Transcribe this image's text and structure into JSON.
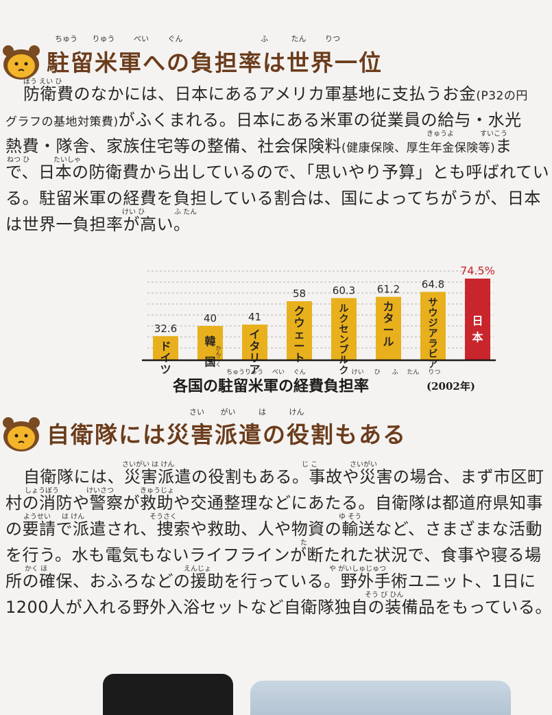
{
  "section1": {
    "title": "駐留米軍への負担率は世界一位",
    "ruby": [
      "ちゅう",
      "りゅう",
      "べい",
      "ぐん",
      "ふ",
      "たん",
      "りつ"
    ],
    "paragraph": [
      [
        "防衛費のなかには、日本にあるアメリカ軍基地に支払うお金",
        "(P32の円"
      ],
      [
        "グラフの基地対策費)",
        "がふくまれる。日本にある米軍の従業員の給与・水光"
      ],
      [
        "熱費・隊舎、家族住宅等の整備、社会保険料",
        "(健康保険、厚生年金保険等)",
        "ま"
      ],
      [
        "で、日本の防衛費から出しているので、「思いやり予算」とも呼ばれてい"
      ],
      [
        "る。駐留米軍の経費を負担している割合は、国によってちがうが、日本"
      ],
      [
        "は世界一負担率が高い。"
      ]
    ],
    "furigana": [
      "ぼう えい ひ",
      "きゅうよ",
      "すいこう",
      "ねつ ひ",
      "たいしゃ",
      "けい ひ",
      "ふ たん"
    ]
  },
  "chart_data": {
    "type": "bar",
    "categories": [
      "ドイツ",
      "韓国",
      "イタリア",
      "クウェート",
      "ルクセンブルク",
      "カタール",
      "サウジアラビア",
      "日本"
    ],
    "values": [
      32.6,
      40,
      41,
      58,
      60.3,
      61.2,
      64.8,
      74.5
    ],
    "value_labels": [
      "32.6",
      "40",
      "41",
      "58",
      "60.3",
      "61.2",
      "64.8",
      "74.5%"
    ],
    "category_ruby": {
      "韓国": "かんこく"
    },
    "title": "各国の駐留米軍の経費負担率",
    "title_ruby": [
      "ちゅうりゅう",
      "べい",
      "ぐん",
      "けい",
      "ひ",
      "ふ",
      "たん",
      "りつ"
    ],
    "year": "(2002年)",
    "ylim": [
      0,
      80
    ],
    "grid": true,
    "colors": {
      "bar": "#e8b01c",
      "highlight": "#c9252c",
      "label": "#2a2522",
      "highlight_label": "#c9252c"
    }
  },
  "section2": {
    "title": "自衛隊には災害派遣の役割もある",
    "ruby": [
      "さい",
      "がい",
      "は",
      "けん"
    ],
    "paragraph": [
      [
        "自衛隊には、災害派遣の役割もある。事故や災害の場合、まず市区町"
      ],
      [
        "村の消防や警察が救助や交通整理などにあたる。自衛隊は都道府県知事"
      ],
      [
        "の要請で派遣され、捜索や救助、人や物資の輸送など、さまざまな活動"
      ],
      [
        "を行う。水も電気もないライフラインが断たれた状況で、食事や寝る場"
      ],
      [
        "所の確保、おふろなどの援助を行っている。野外手術ユニット、1日に"
      ],
      [
        "1200人が入れる野外入浴セットなど自衛隊独自の装備品をもっている。"
      ]
    ],
    "furigana": [
      "さいがい は けん",
      "じ こ",
      "さいがい",
      "しょうぼう",
      "けいさつ",
      "きゅうじょ",
      "ようせい",
      "は けん",
      "そうさく",
      "ゆ そう",
      "た",
      "かく ほ",
      "えんじょ",
      "や がいしゅじゅつ",
      "そう び ひん"
    ]
  },
  "colors": {
    "heading": "#6b3c1c",
    "mascot_face": "#f3b52a",
    "mascot_hair": "#7a4a22"
  }
}
